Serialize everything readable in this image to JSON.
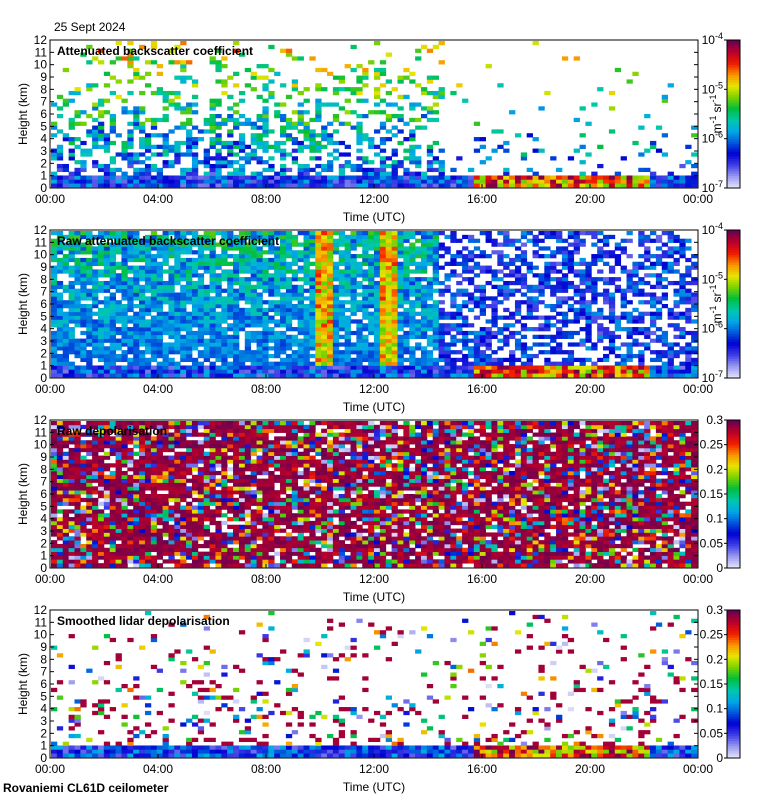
{
  "date_label": "25 Sept 2024",
  "footer_label": "Rovaniemi CL61D ceilometer",
  "chart_data": [
    {
      "type": "heatmap",
      "title": "Attenuated backscatter coefficient",
      "xlabel": "Time (UTC)",
      "ylabel": "Height (km)",
      "x_ticks": [
        "00:00",
        "04:00",
        "08:00",
        "12:00",
        "16:00",
        "20:00",
        "00:00"
      ],
      "y_ticks": [
        0,
        1,
        2,
        3,
        4,
        5,
        6,
        7,
        8,
        9,
        10,
        11,
        12
      ],
      "ylim": [
        0,
        12
      ],
      "colorbar": {
        "scale": "log",
        "range": [
          1e-07,
          0.0001
        ],
        "ticks": [
          "10",
          "10",
          "10",
          "10"
        ],
        "tick_exponents": [
          "-7",
          "-6",
          "-5",
          "-4"
        ],
        "unit": "m",
        "unit_exponent": "-1",
        "unit2": "sr",
        "unit2_exponent": "-1"
      }
    },
    {
      "type": "heatmap",
      "title": "Raw attenuated backscatter coefficient",
      "xlabel": "Time (UTC)",
      "ylabel": "Height (km)",
      "x_ticks": [
        "00:00",
        "04:00",
        "08:00",
        "12:00",
        "16:00",
        "20:00",
        "00:00"
      ],
      "y_ticks": [
        0,
        1,
        2,
        3,
        4,
        5,
        6,
        7,
        8,
        9,
        10,
        11,
        12
      ],
      "ylim": [
        0,
        12
      ],
      "colorbar": {
        "scale": "log",
        "range": [
          1e-07,
          0.0001
        ],
        "ticks": [
          "10",
          "10",
          "10",
          "10"
        ],
        "tick_exponents": [
          "-7",
          "-6",
          "-5",
          "-4"
        ],
        "unit": "m",
        "unit_exponent": "-1",
        "unit2": "sr",
        "unit2_exponent": "-1"
      }
    },
    {
      "type": "heatmap",
      "title": "Raw depolarisation",
      "xlabel": "Time (UTC)",
      "ylabel": "Height (km)",
      "x_ticks": [
        "00:00",
        "04:00",
        "08:00",
        "12:00",
        "16:00",
        "20:00",
        "00:00"
      ],
      "y_ticks": [
        0,
        1,
        2,
        3,
        4,
        5,
        6,
        7,
        8,
        9,
        10,
        11,
        12
      ],
      "ylim": [
        0,
        12
      ],
      "colorbar": {
        "scale": "linear",
        "range": [
          0,
          0.3
        ],
        "ticks": [
          "0",
          "0.05",
          "0.1",
          "0.15",
          "0.2",
          "0.25",
          "0.3"
        ]
      }
    },
    {
      "type": "heatmap",
      "title": "Smoothed lidar depolarisation",
      "xlabel": "Time (UTC)",
      "ylabel": "Height (km)",
      "x_ticks": [
        "00:00",
        "04:00",
        "08:00",
        "12:00",
        "16:00",
        "20:00",
        "00:00"
      ],
      "y_ticks": [
        0,
        1,
        2,
        3,
        4,
        5,
        6,
        7,
        8,
        9,
        10,
        11,
        12
      ],
      "ylim": [
        0,
        12
      ],
      "colorbar": {
        "scale": "linear",
        "range": [
          0,
          0.3
        ],
        "ticks": [
          "0",
          "0.05",
          "0.1",
          "0.15",
          "0.2",
          "0.25",
          "0.3"
        ]
      }
    }
  ]
}
